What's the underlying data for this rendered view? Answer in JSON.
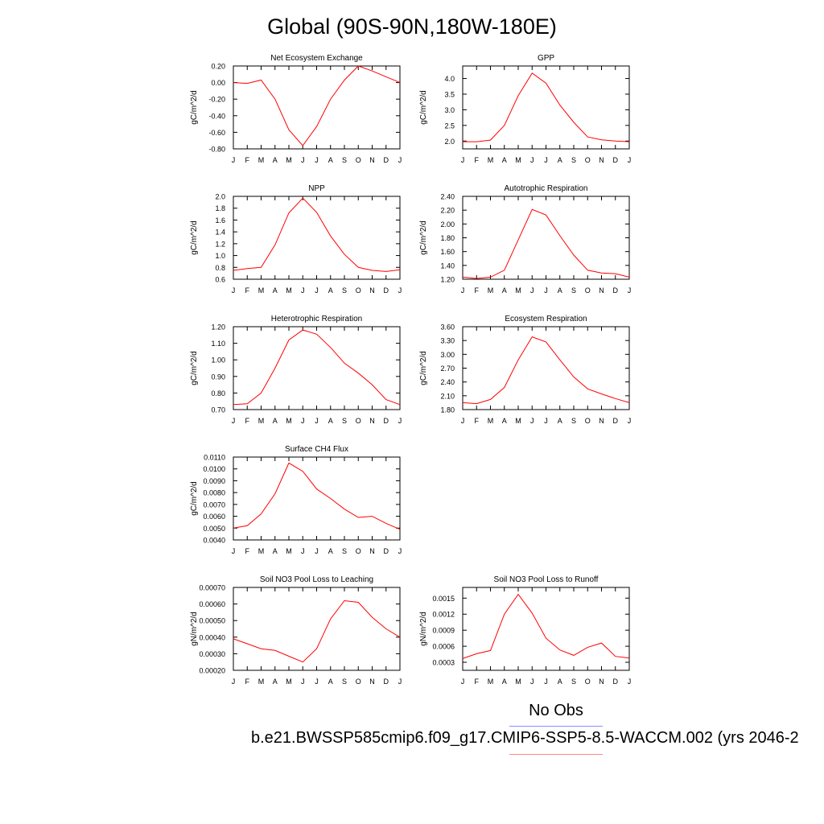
{
  "page": {
    "title": "Global (90S-90N,180W-180E)",
    "legend": {
      "obs_label": "No Obs",
      "obs_color": "#8c8cff",
      "case_label": "b.e21.BWSSP585cmip6.f09_g17.CMIP6-SSP5-8.5-WACCM.002 (yrs 2046-2",
      "case_color": "#ff8c8c"
    }
  },
  "chart_data": [
    {
      "type": "line",
      "title": "Net Ecosystem Exchange",
      "ylabel": "gC/m^2/d",
      "categories": [
        "J",
        "F",
        "M",
        "A",
        "M",
        "J",
        "J",
        "A",
        "S",
        "O",
        "N",
        "D",
        "J"
      ],
      "yticks": [
        "0.20",
        "0.00",
        "-0.20",
        "-0.40",
        "-0.60",
        "-0.80"
      ],
      "ylim": [
        -0.8,
        0.2
      ],
      "series": [
        {
          "color": "#ff0000",
          "values": [
            0.0,
            -0.01,
            0.03,
            -0.2,
            -0.57,
            -0.76,
            -0.53,
            -0.2,
            0.03,
            0.2,
            0.14,
            0.07,
            0.0
          ]
        }
      ]
    },
    {
      "type": "line",
      "title": "GPP",
      "ylabel": "gC/m^2/d",
      "categories": [
        "J",
        "F",
        "M",
        "A",
        "M",
        "J",
        "J",
        "A",
        "S",
        "O",
        "N",
        "D",
        "J"
      ],
      "yticks": [
        "4.0",
        "3.5",
        "3.0",
        "2.5",
        "2.0"
      ],
      "ylim": [
        1.75,
        4.4
      ],
      "series": [
        {
          "color": "#ff0000",
          "values": [
            1.98,
            1.98,
            2.03,
            2.5,
            3.45,
            4.17,
            3.85,
            3.15,
            2.6,
            2.13,
            2.04,
            2.0,
            1.98
          ]
        }
      ]
    },
    {
      "type": "line",
      "title": "NPP",
      "ylabel": "gC/m^2/d",
      "categories": [
        "J",
        "F",
        "M",
        "A",
        "M",
        "J",
        "J",
        "A",
        "S",
        "O",
        "N",
        "D",
        "J"
      ],
      "yticks": [
        "2.0",
        "1.8",
        "1.6",
        "1.4",
        "1.2",
        "1.0",
        "0.8",
        "0.6"
      ],
      "ylim": [
        0.6,
        2.0
      ],
      "series": [
        {
          "color": "#ff0000",
          "values": [
            0.75,
            0.78,
            0.8,
            1.18,
            1.72,
            1.97,
            1.73,
            1.33,
            1.02,
            0.8,
            0.75,
            0.73,
            0.76
          ]
        }
      ]
    },
    {
      "type": "line",
      "title": "Autotrophic Respiration",
      "ylabel": "gC/m^2/d",
      "categories": [
        "J",
        "F",
        "M",
        "A",
        "M",
        "J",
        "J",
        "A",
        "S",
        "O",
        "N",
        "D",
        "J"
      ],
      "yticks": [
        "2.40",
        "2.20",
        "2.00",
        "1.80",
        "1.60",
        "1.40",
        "1.20"
      ],
      "ylim": [
        1.2,
        2.4
      ],
      "series": [
        {
          "color": "#ff0000",
          "values": [
            1.23,
            1.21,
            1.23,
            1.33,
            1.77,
            2.21,
            2.13,
            1.83,
            1.55,
            1.33,
            1.29,
            1.28,
            1.23
          ]
        }
      ]
    },
    {
      "type": "line",
      "title": "Heterotrophic Respiration",
      "ylabel": "gC/m^2/d",
      "categories": [
        "J",
        "F",
        "M",
        "A",
        "M",
        "J",
        "J",
        "A",
        "S",
        "O",
        "N",
        "D",
        "J"
      ],
      "yticks": [
        "1.20",
        "1.10",
        "1.00",
        "0.90",
        "0.80",
        "0.70"
      ],
      "ylim": [
        0.7,
        1.2
      ],
      "series": [
        {
          "color": "#ff0000",
          "values": [
            0.73,
            0.735,
            0.8,
            0.95,
            1.12,
            1.18,
            1.155,
            1.075,
            0.98,
            0.92,
            0.85,
            0.76,
            0.73
          ]
        }
      ]
    },
    {
      "type": "line",
      "title": "Ecosystem Respiration",
      "ylabel": "gC/m^2/d",
      "categories": [
        "J",
        "F",
        "M",
        "A",
        "M",
        "J",
        "J",
        "A",
        "S",
        "O",
        "N",
        "D",
        "J"
      ],
      "yticks": [
        "3.60",
        "3.30",
        "3.00",
        "2.70",
        "2.40",
        "2.10",
        "1.80"
      ],
      "ylim": [
        1.8,
        3.6
      ],
      "series": [
        {
          "color": "#ff0000",
          "values": [
            1.95,
            1.93,
            2.02,
            2.28,
            2.88,
            3.38,
            3.27,
            2.88,
            2.51,
            2.25,
            2.14,
            2.04,
            1.95
          ]
        }
      ]
    },
    {
      "type": "line",
      "title": "Surface CH4 Flux",
      "ylabel": "gC/m^2/d",
      "categories": [
        "J",
        "F",
        "M",
        "A",
        "M",
        "J",
        "J",
        "A",
        "S",
        "O",
        "N",
        "D",
        "J"
      ],
      "yticks": [
        "0.0110",
        "0.0100",
        "0.0090",
        "0.0080",
        "0.0070",
        "0.0060",
        "0.0050",
        "0.0040"
      ],
      "ylim": [
        0.004,
        0.011
      ],
      "series": [
        {
          "color": "#ff0000",
          "values": [
            0.005,
            0.0052,
            0.0062,
            0.0079,
            0.0105,
            0.0098,
            0.0083,
            0.0075,
            0.0066,
            0.0059,
            0.006,
            0.0054,
            0.0049
          ]
        }
      ]
    },
    {
      "type": "line",
      "title": "Soil NO3 Pool Loss to Leaching",
      "ylabel": "gN/m^2/d",
      "categories": [
        "J",
        "F",
        "M",
        "A",
        "M",
        "J",
        "J",
        "A",
        "S",
        "O",
        "N",
        "D",
        "J"
      ],
      "yticks": [
        "0.00070",
        "0.00060",
        "0.00050",
        "0.00040",
        "0.00030",
        "0.00020"
      ],
      "ylim": [
        0.0002,
        0.0007
      ],
      "series": [
        {
          "color": "#ff0000",
          "values": [
            0.00039,
            0.00036,
            0.00033,
            0.00032,
            0.000285,
            0.00025,
            0.00033,
            0.00051,
            0.00062,
            0.00061,
            0.00052,
            0.00045,
            0.0004
          ]
        }
      ]
    },
    {
      "type": "line",
      "title": "Soil NO3 Pool Loss to Runoff",
      "ylabel": "gN/m^2/d",
      "categories": [
        "J",
        "F",
        "M",
        "A",
        "M",
        "J",
        "J",
        "A",
        "S",
        "O",
        "N",
        "D",
        "J"
      ],
      "yticks": [
        "0.0015",
        "0.0012",
        "0.0009",
        "0.0006",
        "0.0003"
      ],
      "ylim": [
        0.00015,
        0.0017
      ],
      "series": [
        {
          "color": "#ff0000",
          "values": [
            0.00037,
            0.00046,
            0.00052,
            0.0012,
            0.00157,
            0.00122,
            0.00075,
            0.00053,
            0.00043,
            0.00058,
            0.00066,
            0.00041,
            0.00038
          ]
        }
      ]
    }
  ]
}
